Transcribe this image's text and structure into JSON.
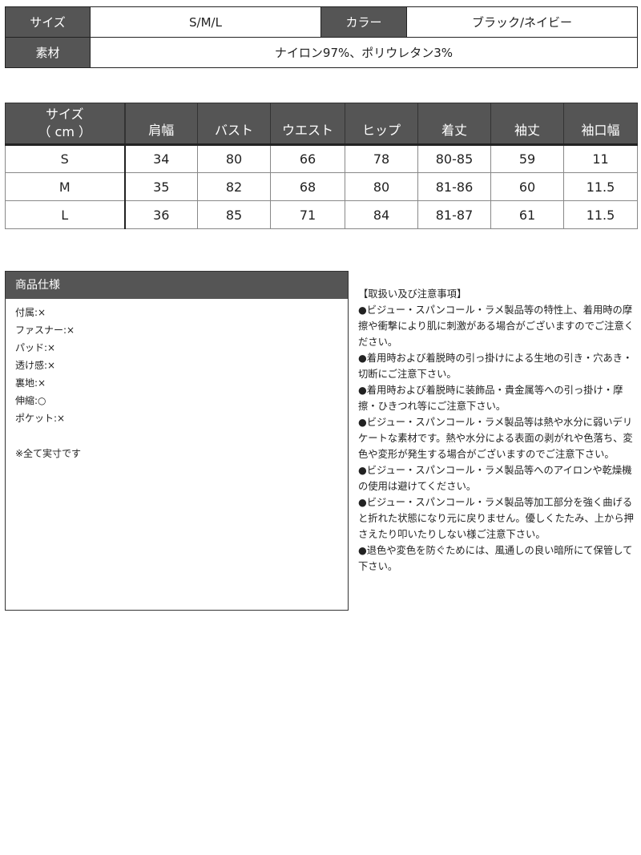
{
  "info": {
    "size_label": "サイズ",
    "size_value": "S/M/L",
    "color_label": "カラー",
    "color_value": "ブラック/ネイビー",
    "material_label": "素材",
    "material_value": "ナイロン97%、ポリウレタン3%"
  },
  "size_table": {
    "header_first": [
      "サイズ",
      "（ cm ）"
    ],
    "columns": [
      "肩幅",
      "バスト",
      "ウエスト",
      "ヒップ",
      "着丈",
      "袖丈",
      "袖口幅"
    ],
    "rows": [
      {
        "size": "S",
        "values": [
          "34",
          "80",
          "66",
          "78",
          "80-85",
          "59",
          "11"
        ]
      },
      {
        "size": "M",
        "values": [
          "35",
          "82",
          "68",
          "80",
          "81-86",
          "60",
          "11.5"
        ]
      },
      {
        "size": "L",
        "values": [
          "36",
          "85",
          "71",
          "84",
          "81-87",
          "61",
          "11.5"
        ]
      }
    ]
  },
  "spec": {
    "title": "商品仕様",
    "items": [
      "付属:×",
      "ファスナー:×",
      "パッド:×",
      "透け感:×",
      "裏地:×",
      "伸縮:○",
      "ポケット:×"
    ],
    "note": "※全て実寸です"
  },
  "notes": {
    "title": "【取扱い及び注意事項】",
    "items": [
      "●ビジュー・スパンコール・ラメ製品等の特性上、着用時の摩擦や衝撃により肌に刺激がある場合がございますのでご注意ください。",
      "●着用時および着脱時の引っ掛けによる生地の引き・穴あき・切断にご注意下さい。",
      "●着用時および着脱時に装飾品・貴金属等への引っ掛け・摩擦・ひきつれ等にご注意下さい。",
      "●ビジュー・スパンコール・ラメ製品等は熱や水分に弱いデリケートな素材です。熱や水分による表面の剥がれや色落ち、変色や変形が発生する場合がございますのでご注意下さい。",
      "●ビジュー・スパンコール・ラメ製品等へのアイロンや乾燥機の使用は避けてください。",
      "●ビジュー・スパンコール・ラメ製品等加工部分を強く曲げると折れた状態になり元に戻りません。優しくたたみ、上から押さえたり叩いたりしない様ご注意下さい。",
      "●退色や変色を防ぐためには、風通しの良い暗所にて保管して下さい。"
    ]
  }
}
